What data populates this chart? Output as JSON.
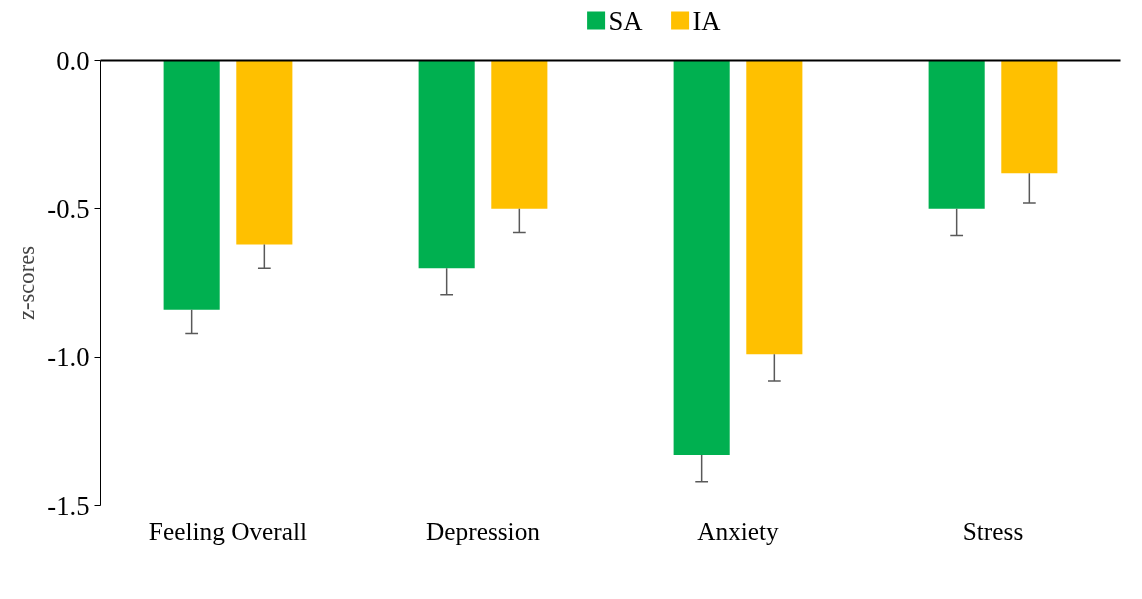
{
  "chart_data": {
    "type": "bar",
    "ylabel": "z-scores",
    "categories": [
      "Feeling Overall",
      "Depression",
      "Anxiety",
      "Stress"
    ],
    "series": [
      {
        "name": "SA",
        "color": "#00b050",
        "values": [
          -0.84,
          -0.7,
          -1.33,
          -0.5
        ],
        "errors": [
          [
            -0.92,
            -0.84
          ],
          [
            -0.79,
            -0.7
          ],
          [
            -1.42,
            -1.33
          ],
          [
            -0.59,
            -0.5
          ]
        ]
      },
      {
        "name": "IA",
        "color": "#ffc000",
        "values": [
          -0.62,
          -0.5,
          -0.99,
          -0.38
        ],
        "errors": [
          [
            -0.7,
            -0.62
          ],
          [
            -0.58,
            -0.5
          ],
          [
            -1.08,
            -0.99
          ],
          [
            -0.48,
            -0.38
          ]
        ]
      }
    ],
    "ylim": [
      -1.5,
      0
    ],
    "yticks": [
      {
        "value": -1.5,
        "label": "-1.5"
      },
      {
        "value": -1.0,
        "label": "-1.0"
      },
      {
        "value": -0.5,
        "label": "-0.5"
      },
      {
        "value": 0,
        "label": "0.0"
      }
    ],
    "grid": false,
    "legend": "top"
  }
}
